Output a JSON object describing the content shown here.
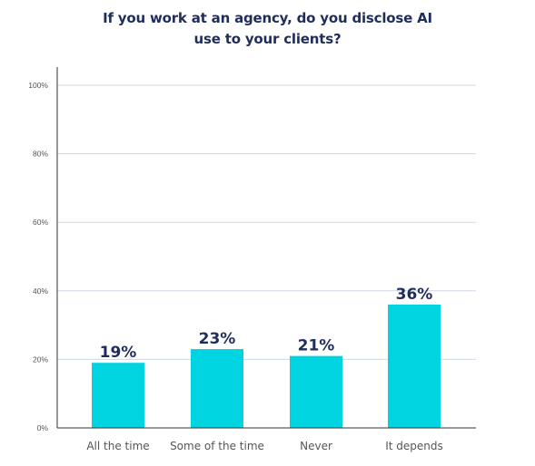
{
  "chart_data": {
    "type": "bar",
    "title_lines": [
      "If you work at an agency, do you disclose AI",
      "use to your clients?"
    ],
    "categories": [
      "All the time",
      "Some of the time",
      "Never",
      "It depends"
    ],
    "values": [
      19,
      23,
      21,
      36
    ],
    "value_labels": [
      "19%",
      "23%",
      "21%",
      "36%"
    ],
    "ylim": [
      0,
      100
    ],
    "yticks": [
      0,
      20,
      40,
      60,
      80,
      100
    ],
    "ytick_labels": [
      "0%",
      "20%",
      "40%",
      "60%",
      "80%",
      "100%"
    ],
    "grid": true,
    "legend": "none",
    "colors": {
      "bar": "#00d4e0",
      "title": "#1f2d5c",
      "value_label": "#1f2d5c",
      "axis_text": "#555555",
      "grid": "#cfd8e3",
      "axis": "#333333"
    }
  }
}
